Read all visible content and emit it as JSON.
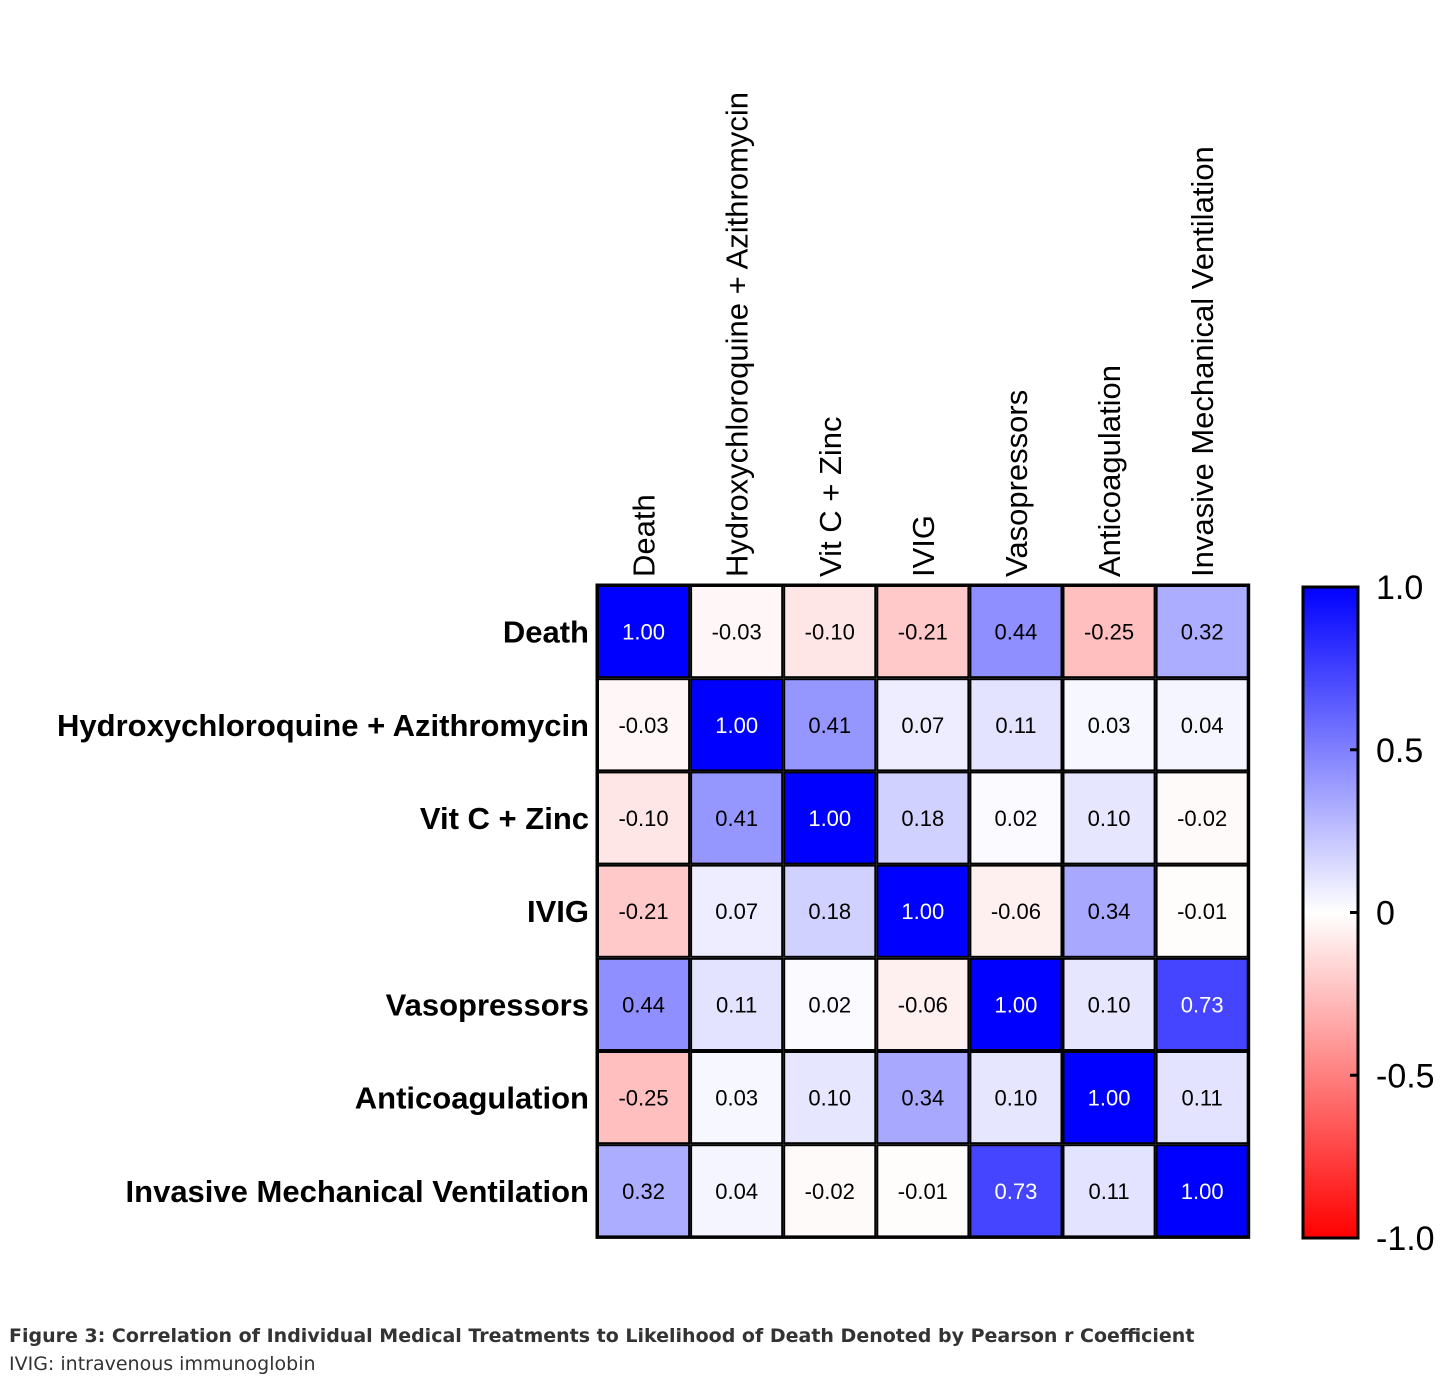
{
  "chart_data": {
    "type": "heatmap",
    "row_labels": [
      "Death",
      "Hydroxychloroquine + Azithromycin",
      "Vit C + Zinc",
      "IVIG",
      "Vasopressors",
      "Anticoagulation",
      "Invasive Mechanical Ventilation"
    ],
    "column_labels": [
      "Death",
      "Hydroxychloroquine + Azithromycin",
      "Vit C + Zinc",
      "IVIG",
      "Vasopressors",
      "Anticoagulation",
      "Invasive Mechanical Ventilation"
    ],
    "values": [
      [
        1.0,
        -0.03,
        -0.1,
        -0.21,
        0.44,
        -0.25,
        0.32
      ],
      [
        -0.03,
        1.0,
        0.41,
        0.07,
        0.11,
        0.03,
        0.04
      ],
      [
        -0.1,
        0.41,
        1.0,
        0.18,
        0.02,
        0.1,
        -0.02
      ],
      [
        -0.21,
        0.07,
        0.18,
        1.0,
        -0.06,
        0.34,
        -0.01
      ],
      [
        0.44,
        0.11,
        0.02,
        -0.06,
        1.0,
        0.1,
        0.73
      ],
      [
        -0.25,
        0.03,
        0.1,
        0.34,
        0.1,
        1.0,
        0.11
      ],
      [
        0.32,
        0.04,
        -0.02,
        -0.01,
        0.73,
        0.11,
        1.0
      ]
    ],
    "cell_labels": [
      [
        "1.00",
        "-0.03",
        "-0.10",
        "-0.21",
        "0.44",
        "-0.25",
        "0.32"
      ],
      [
        "-0.03",
        "1.00",
        "0.41",
        "0.07",
        "0.11",
        "0.03",
        "0.04"
      ],
      [
        "-0.10",
        "0.41",
        "1.00",
        "0.18",
        "0.02",
        "0.10",
        "-0.02"
      ],
      [
        "-0.21",
        "0.07",
        "0.18",
        "1.00",
        "-0.06",
        "0.34",
        "-0.01"
      ],
      [
        "0.44",
        "0.11",
        "0.02",
        "-0.06",
        "1.00",
        "0.10",
        "0.73"
      ],
      [
        "-0.25",
        "0.03",
        "0.10",
        "0.34",
        "0.10",
        "1.00",
        "0.11"
      ],
      [
        "0.32",
        "0.04",
        "-0.02",
        "-0.01",
        "0.73",
        "0.11",
        "1.00"
      ]
    ],
    "colorbar": {
      "range": [
        -1.0,
        1.0
      ],
      "tick_values": [
        1.0,
        0.5,
        0,
        -0.5,
        -1.0
      ],
      "tick_labels": [
        "1.0",
        "0.5",
        "0",
        "-0.5",
        "-1.0"
      ],
      "low_color": "#ff0000",
      "mid_color": "#ffffff",
      "high_color": "#0000ff",
      "placement": "right"
    }
  },
  "caption": {
    "title": "Figure 3: Correlation of Individual Medical Treatments to Likelihood of Death Denoted by Pearson r Coefficient",
    "note": "IVIG: intravenous immunoglobin"
  }
}
